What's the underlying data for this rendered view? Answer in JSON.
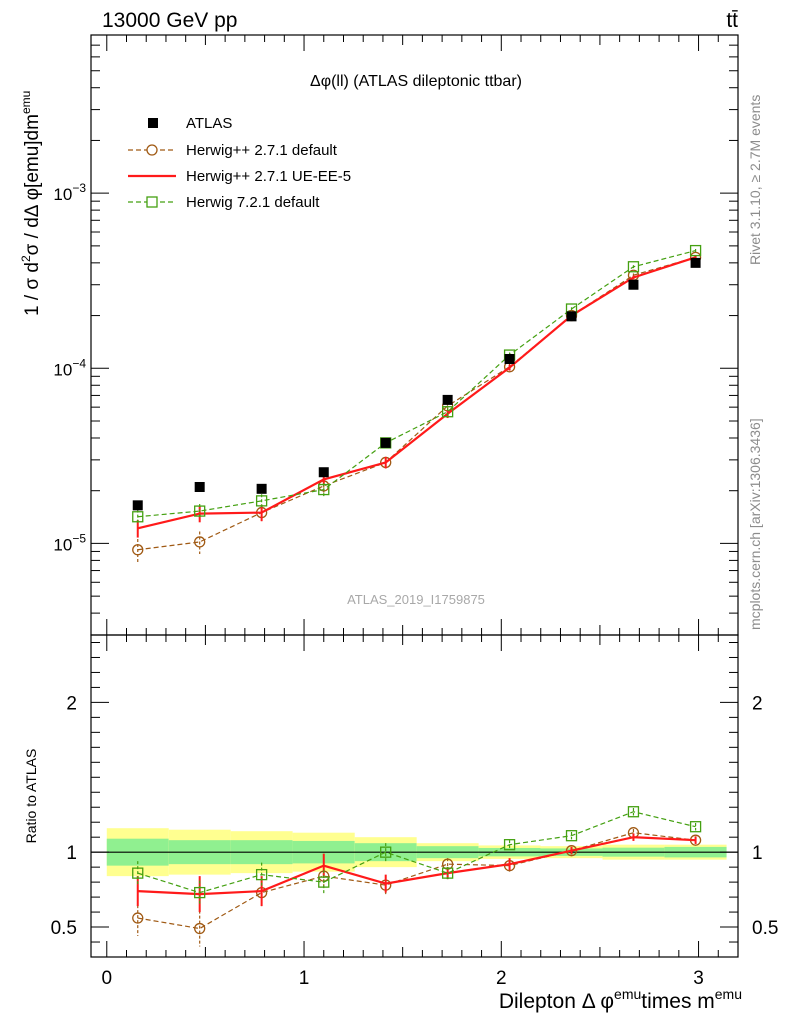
{
  "header": {
    "left": "13000 GeV pp",
    "right": "tt̄"
  },
  "side_labels": {
    "rivet": "Rivet 3.1.10, ≥ 2.7M events",
    "mcplots": "mcplots.cern.ch [arXiv:1306.3436]"
  },
  "colors": {
    "atlas": "#000000",
    "herwig_pp_default": "#a05a14",
    "herwig_pp_ueee5": "#ff1a1a",
    "herwig72_default": "#44a011",
    "band_inner": "#90f090",
    "band_outer": "#ffff90"
  },
  "chart_data": [
    {
      "type": "scatter",
      "panel": "main",
      "title": "Δφ(ll) (ATLAS dileptonic ttbar)",
      "watermark": "ATLAS_2019_I1759875",
      "xlabel": "",
      "ylabel_parts": [
        "1 / σ  d",
        "2",
        "σ / dΔ φ[emu]dm",
        "emu"
      ],
      "yscale": "log",
      "xlim": [
        -0.08,
        3.2
      ],
      "ylim": [
        3e-06,
        0.008
      ],
      "y_ticks": [
        {
          "value": 1e-05,
          "base": "10",
          "exp": "−5"
        },
        {
          "value": 0.0001,
          "base": "10",
          "exp": "−4"
        },
        {
          "value": 0.001,
          "base": "10",
          "exp": "−3"
        }
      ],
      "x": [
        0.157,
        0.471,
        0.785,
        1.1,
        1.414,
        1.728,
        2.042,
        2.356,
        2.67,
        2.985
      ],
      "series": [
        {
          "name": "ATLAS",
          "style": "data",
          "values": [
            1.65e-05,
            2.1e-05,
            2.05e-05,
            2.55e-05,
            3.75e-05,
            6.6e-05,
            0.000113,
            0.000198,
            0.0003,
            0.0004
          ]
        },
        {
          "name": "Herwig++ 2.7.1 default",
          "style": "circle-dashed",
          "values": [
            9.2e-06,
            1.02e-05,
            1.5e-05,
            2.13e-05,
            2.9e-05,
            6.1e-05,
            0.000102,
            0.0002,
            0.00034,
            0.00043
          ],
          "errors": [
            1.4e-06,
            1.5e-06,
            1.6e-06,
            1.8e-06,
            2.2e-06,
            3e-06,
            4e-06,
            5e-06,
            8e-06,
            1e-05
          ]
        },
        {
          "name": "Herwig++ 2.7.1 UE-EE-5",
          "style": "solid",
          "values": [
            1.22e-05,
            1.48e-05,
            1.5e-05,
            2.32e-05,
            2.9e-05,
            5.5e-05,
            0.000101,
            0.0002,
            0.00033,
            0.00043
          ],
          "errors": [
            1.4e-06,
            1.6e-06,
            1.6e-06,
            1.8e-06,
            2.2e-06,
            3e-06,
            4e-06,
            5e-06,
            8e-06,
            1e-05
          ]
        },
        {
          "name": "Herwig 7.2.1 default",
          "style": "square-dashed",
          "values": [
            1.42e-05,
            1.53e-05,
            1.75e-05,
            2.03e-05,
            3.75e-05,
            5.65e-05,
            0.000119,
            0.000218,
            0.00038,
            0.00047
          ],
          "errors": [
            1.4e-06,
            1.5e-06,
            1.6e-06,
            1.8e-06,
            2.2e-06,
            3e-06,
            4e-06,
            5e-06,
            8e-06,
            1e-05
          ]
        }
      ]
    },
    {
      "type": "line",
      "panel": "ratio",
      "ylabel": "Ratio to ATLAS",
      "xlabel_parts": [
        "Dilepton Δ φ",
        "emu",
        "times m",
        "emu"
      ],
      "xlim": [
        -0.08,
        3.2
      ],
      "ylim": [
        0.3,
        2.45
      ],
      "x_ticks": [
        0,
        1,
        2,
        3
      ],
      "x_tick_labels": [
        "0",
        "1",
        "2",
        "3"
      ],
      "y_ticks": [
        0.5,
        1,
        2
      ],
      "y_tick_labels": [
        "0.5",
        "1",
        "2"
      ],
      "bin_edges": [
        0,
        0.314,
        0.628,
        0.942,
        1.257,
        1.571,
        1.885,
        2.199,
        2.513,
        2.827,
        3.142
      ],
      "band_inner": [
        0.09,
        0.08,
        0.08,
        0.075,
        0.06,
        0.04,
        0.028,
        0.025,
        0.03,
        0.035
      ],
      "band_outer": [
        0.16,
        0.15,
        0.14,
        0.13,
        0.1,
        0.06,
        0.045,
        0.04,
        0.05,
        0.05
      ],
      "x": [
        0.157,
        0.471,
        0.785,
        1.1,
        1.414,
        1.728,
        2.042,
        2.356,
        2.67,
        2.985
      ],
      "series": [
        {
          "name": "Herwig++ 2.7.1 default",
          "style": "circle-dashed",
          "values": [
            0.56,
            0.49,
            0.73,
            0.84,
            0.78,
            0.92,
            0.91,
            1.01,
            1.13,
            1.08
          ],
          "errors": [
            0.12,
            0.12,
            0.09,
            0.08,
            0.06,
            0.04,
            0.04,
            0.025,
            0.025,
            0.025
          ]
        },
        {
          "name": "Herwig++ 2.7.1 UE-EE-5",
          "style": "solid",
          "values": [
            0.74,
            0.72,
            0.74,
            0.91,
            0.79,
            0.86,
            0.92,
            1.01,
            1.1,
            1.08
          ],
          "errors": [
            0.1,
            0.12,
            0.1,
            0.08,
            0.06,
            0.04,
            0.04,
            0.025,
            0.025,
            0.025
          ]
        },
        {
          "name": "Herwig 7.2.1 default",
          "style": "square-dashed",
          "values": [
            0.86,
            0.73,
            0.85,
            0.8,
            1.0,
            0.86,
            1.05,
            1.11,
            1.27,
            1.17
          ],
          "errors": [
            0.08,
            0.08,
            0.08,
            0.08,
            0.06,
            0.04,
            0.03,
            0.025,
            0.025,
            0.025
          ]
        }
      ]
    }
  ]
}
